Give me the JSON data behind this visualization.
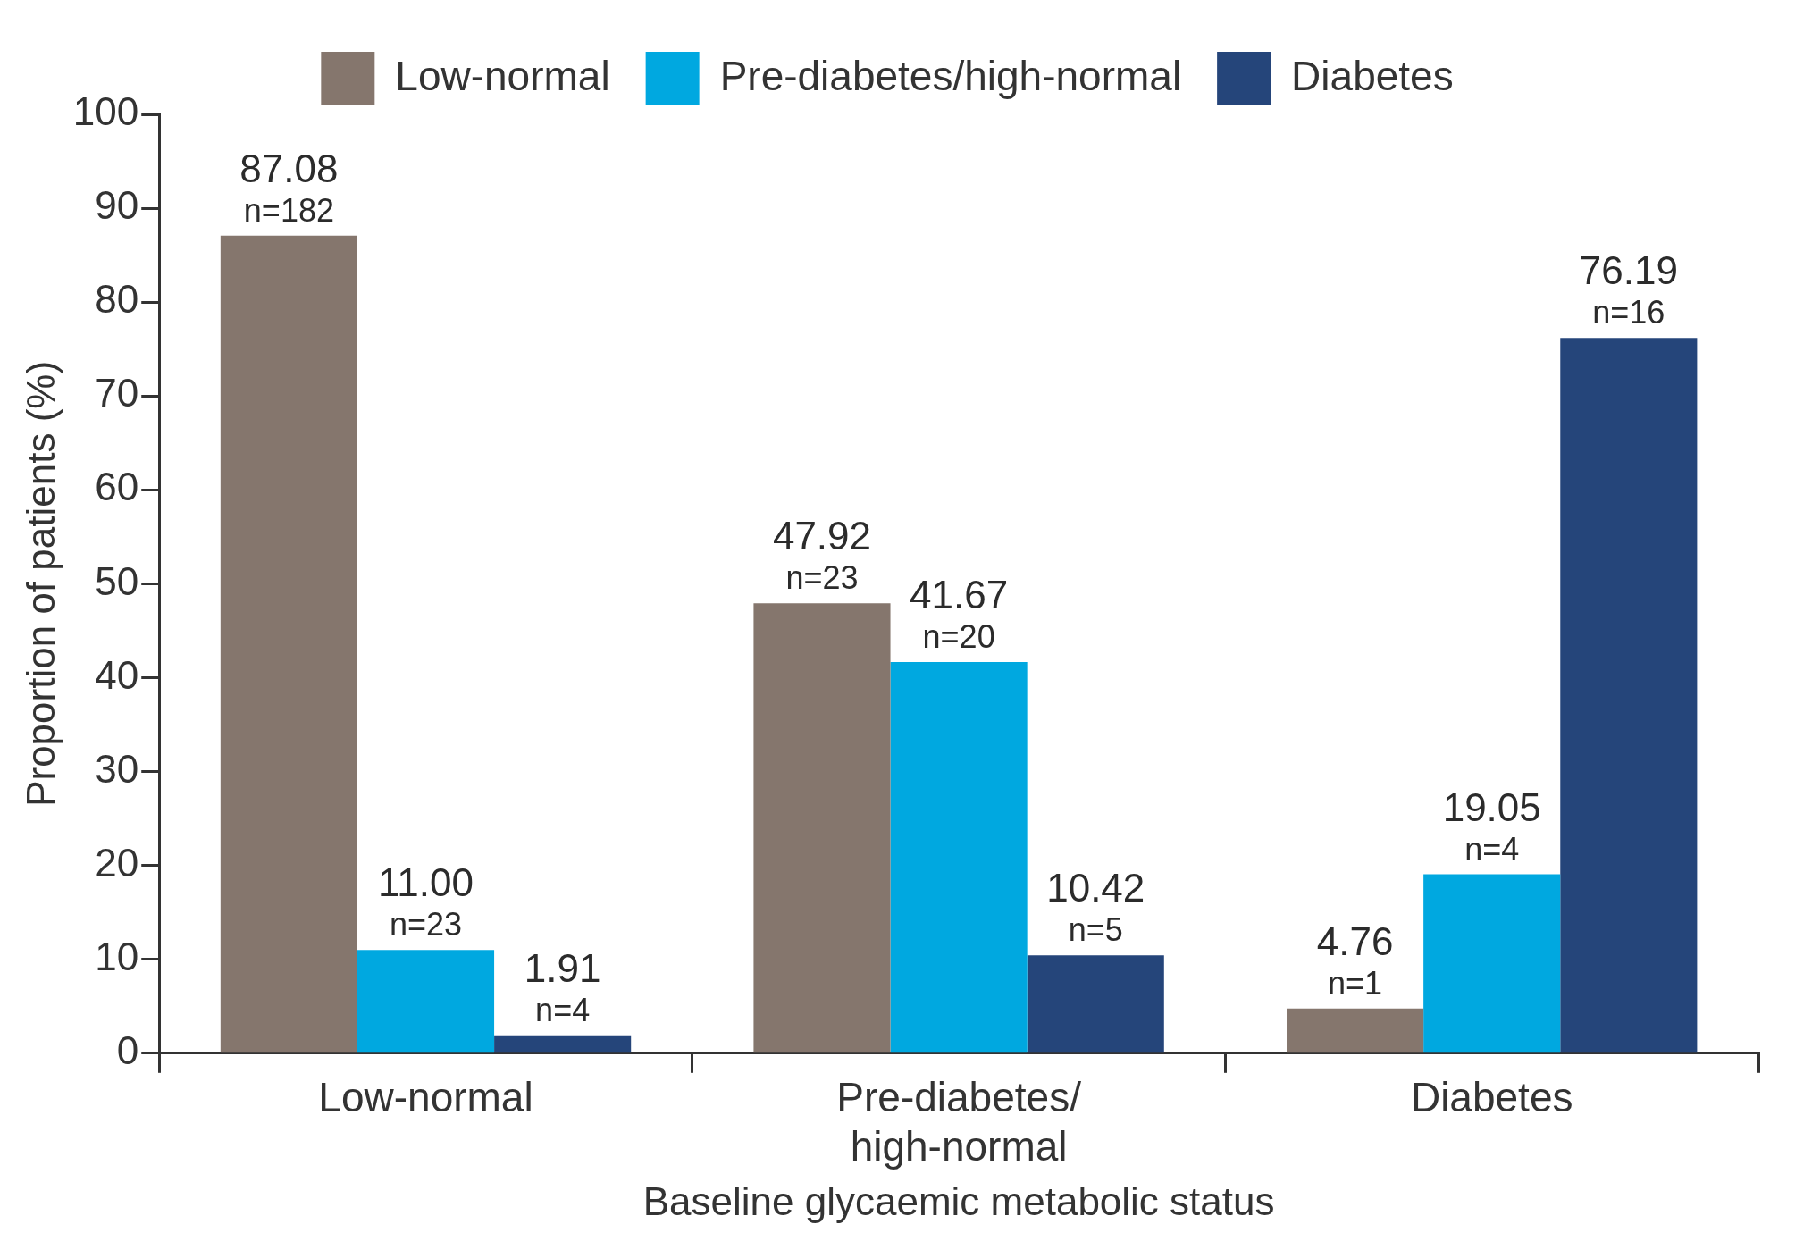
{
  "chart_data": {
    "type": "bar",
    "xlabel": "Baseline glycaemic metabolic status",
    "ylabel": "Proportion of patients (%)",
    "categories": [
      "Low-normal",
      "Pre-diabetes/high-normal",
      "Diabetes"
    ],
    "series": [
      {
        "name": "Low-normal",
        "color": "#85766d",
        "values": [
          87.08,
          47.92,
          4.76
        ],
        "value_labels": [
          "87.08\nn=182",
          "47.92\nn=23",
          "4.76\nn=1"
        ]
      },
      {
        "name": "Pre-diabetes/high-normal",
        "color": "#00a8e0",
        "values": [
          11.0,
          41.67,
          19.05
        ],
        "value_labels": [
          "11.00\nn=23",
          "41.67\nn=20",
          "19.05\nn=4"
        ]
      },
      {
        "name": "Diabetes",
        "color": "#25457a",
        "values": [
          1.91,
          10.42,
          76.19
        ],
        "value_labels": [
          "1.91\nn=4",
          "10.42\nn=5",
          "76.19\nn=16"
        ]
      }
    ],
    "ylim": [
      0,
      100
    ],
    "yticks": [
      0,
      10,
      20,
      30,
      40,
      50,
      60,
      70,
      80,
      90,
      100
    ],
    "grid": false,
    "legend": "top"
  }
}
